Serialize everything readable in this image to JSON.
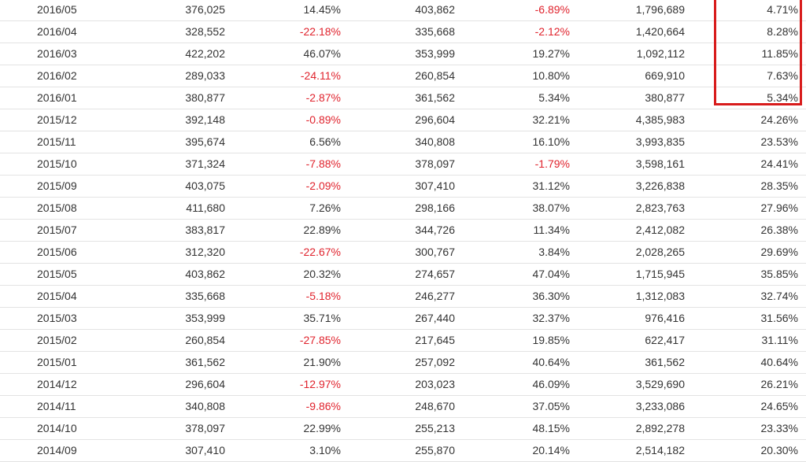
{
  "table": {
    "rows": [
      {
        "month": "2016/05",
        "val1": "376,025",
        "pct1": "14.45%",
        "val2": "403,862",
        "pct2": "-6.89%",
        "cum": "1,796,689",
        "share": "4.71%"
      },
      {
        "month": "2016/04",
        "val1": "328,552",
        "pct1": "-22.18%",
        "val2": "335,668",
        "pct2": "-2.12%",
        "cum": "1,420,664",
        "share": "8.28%"
      },
      {
        "month": "2016/03",
        "val1": "422,202",
        "pct1": "46.07%",
        "val2": "353,999",
        "pct2": "19.27%",
        "cum": "1,092,112",
        "share": "11.85%"
      },
      {
        "month": "2016/02",
        "val1": "289,033",
        "pct1": "-24.11%",
        "val2": "260,854",
        "pct2": "10.80%",
        "cum": "669,910",
        "share": "7.63%"
      },
      {
        "month": "2016/01",
        "val1": "380,877",
        "pct1": "-2.87%",
        "val2": "361,562",
        "pct2": "5.34%",
        "cum": "380,877",
        "share": "5.34%"
      },
      {
        "month": "2015/12",
        "val1": "392,148",
        "pct1": "-0.89%",
        "val2": "296,604",
        "pct2": "32.21%",
        "cum": "4,385,983",
        "share": "24.26%"
      },
      {
        "month": "2015/11",
        "val1": "395,674",
        "pct1": "6.56%",
        "val2": "340,808",
        "pct2": "16.10%",
        "cum": "3,993,835",
        "share": "23.53%"
      },
      {
        "month": "2015/10",
        "val1": "371,324",
        "pct1": "-7.88%",
        "val2": "378,097",
        "pct2": "-1.79%",
        "cum": "3,598,161",
        "share": "24.41%"
      },
      {
        "month": "2015/09",
        "val1": "403,075",
        "pct1": "-2.09%",
        "val2": "307,410",
        "pct2": "31.12%",
        "cum": "3,226,838",
        "share": "28.35%"
      },
      {
        "month": "2015/08",
        "val1": "411,680",
        "pct1": "7.26%",
        "val2": "298,166",
        "pct2": "38.07%",
        "cum": "2,823,763",
        "share": "27.96%"
      },
      {
        "month": "2015/07",
        "val1": "383,817",
        "pct1": "22.89%",
        "val2": "344,726",
        "pct2": "11.34%",
        "cum": "2,412,082",
        "share": "26.38%"
      },
      {
        "month": "2015/06",
        "val1": "312,320",
        "pct1": "-22.67%",
        "val2": "300,767",
        "pct2": "3.84%",
        "cum": "2,028,265",
        "share": "29.69%"
      },
      {
        "month": "2015/05",
        "val1": "403,862",
        "pct1": "20.32%",
        "val2": "274,657",
        "pct2": "47.04%",
        "cum": "1,715,945",
        "share": "35.85%"
      },
      {
        "month": "2015/04",
        "val1": "335,668",
        "pct1": "-5.18%",
        "val2": "246,277",
        "pct2": "36.30%",
        "cum": "1,312,083",
        "share": "32.74%"
      },
      {
        "month": "2015/03",
        "val1": "353,999",
        "pct1": "35.71%",
        "val2": "267,440",
        "pct2": "32.37%",
        "cum": "976,416",
        "share": "31.56%"
      },
      {
        "month": "2015/02",
        "val1": "260,854",
        "pct1": "-27.85%",
        "val2": "217,645",
        "pct2": "19.85%",
        "cum": "622,417",
        "share": "31.11%"
      },
      {
        "month": "2015/01",
        "val1": "361,562",
        "pct1": "21.90%",
        "val2": "257,092",
        "pct2": "40.64%",
        "cum": "361,562",
        "share": "40.64%"
      },
      {
        "month": "2014/12",
        "val1": "296,604",
        "pct1": "-12.97%",
        "val2": "203,023",
        "pct2": "46.09%",
        "cum": "3,529,690",
        "share": "26.21%"
      },
      {
        "month": "2014/11",
        "val1": "340,808",
        "pct1": "-9.86%",
        "val2": "248,670",
        "pct2": "37.05%",
        "cum": "3,233,086",
        "share": "24.65%"
      },
      {
        "month": "2014/10",
        "val1": "378,097",
        "pct1": "22.99%",
        "val2": "255,213",
        "pct2": "48.15%",
        "cum": "2,892,278",
        "share": "23.33%"
      },
      {
        "month": "2014/09",
        "val1": "307,410",
        "pct1": "3.10%",
        "val2": "255,870",
        "pct2": "20.14%",
        "cum": "2,514,182",
        "share": "20.30%"
      }
    ]
  },
  "colors": {
    "text": "#333333",
    "negative": "#e0232d",
    "highlight_border": "#d81b1b",
    "row_divider": "#e3e3e3"
  }
}
